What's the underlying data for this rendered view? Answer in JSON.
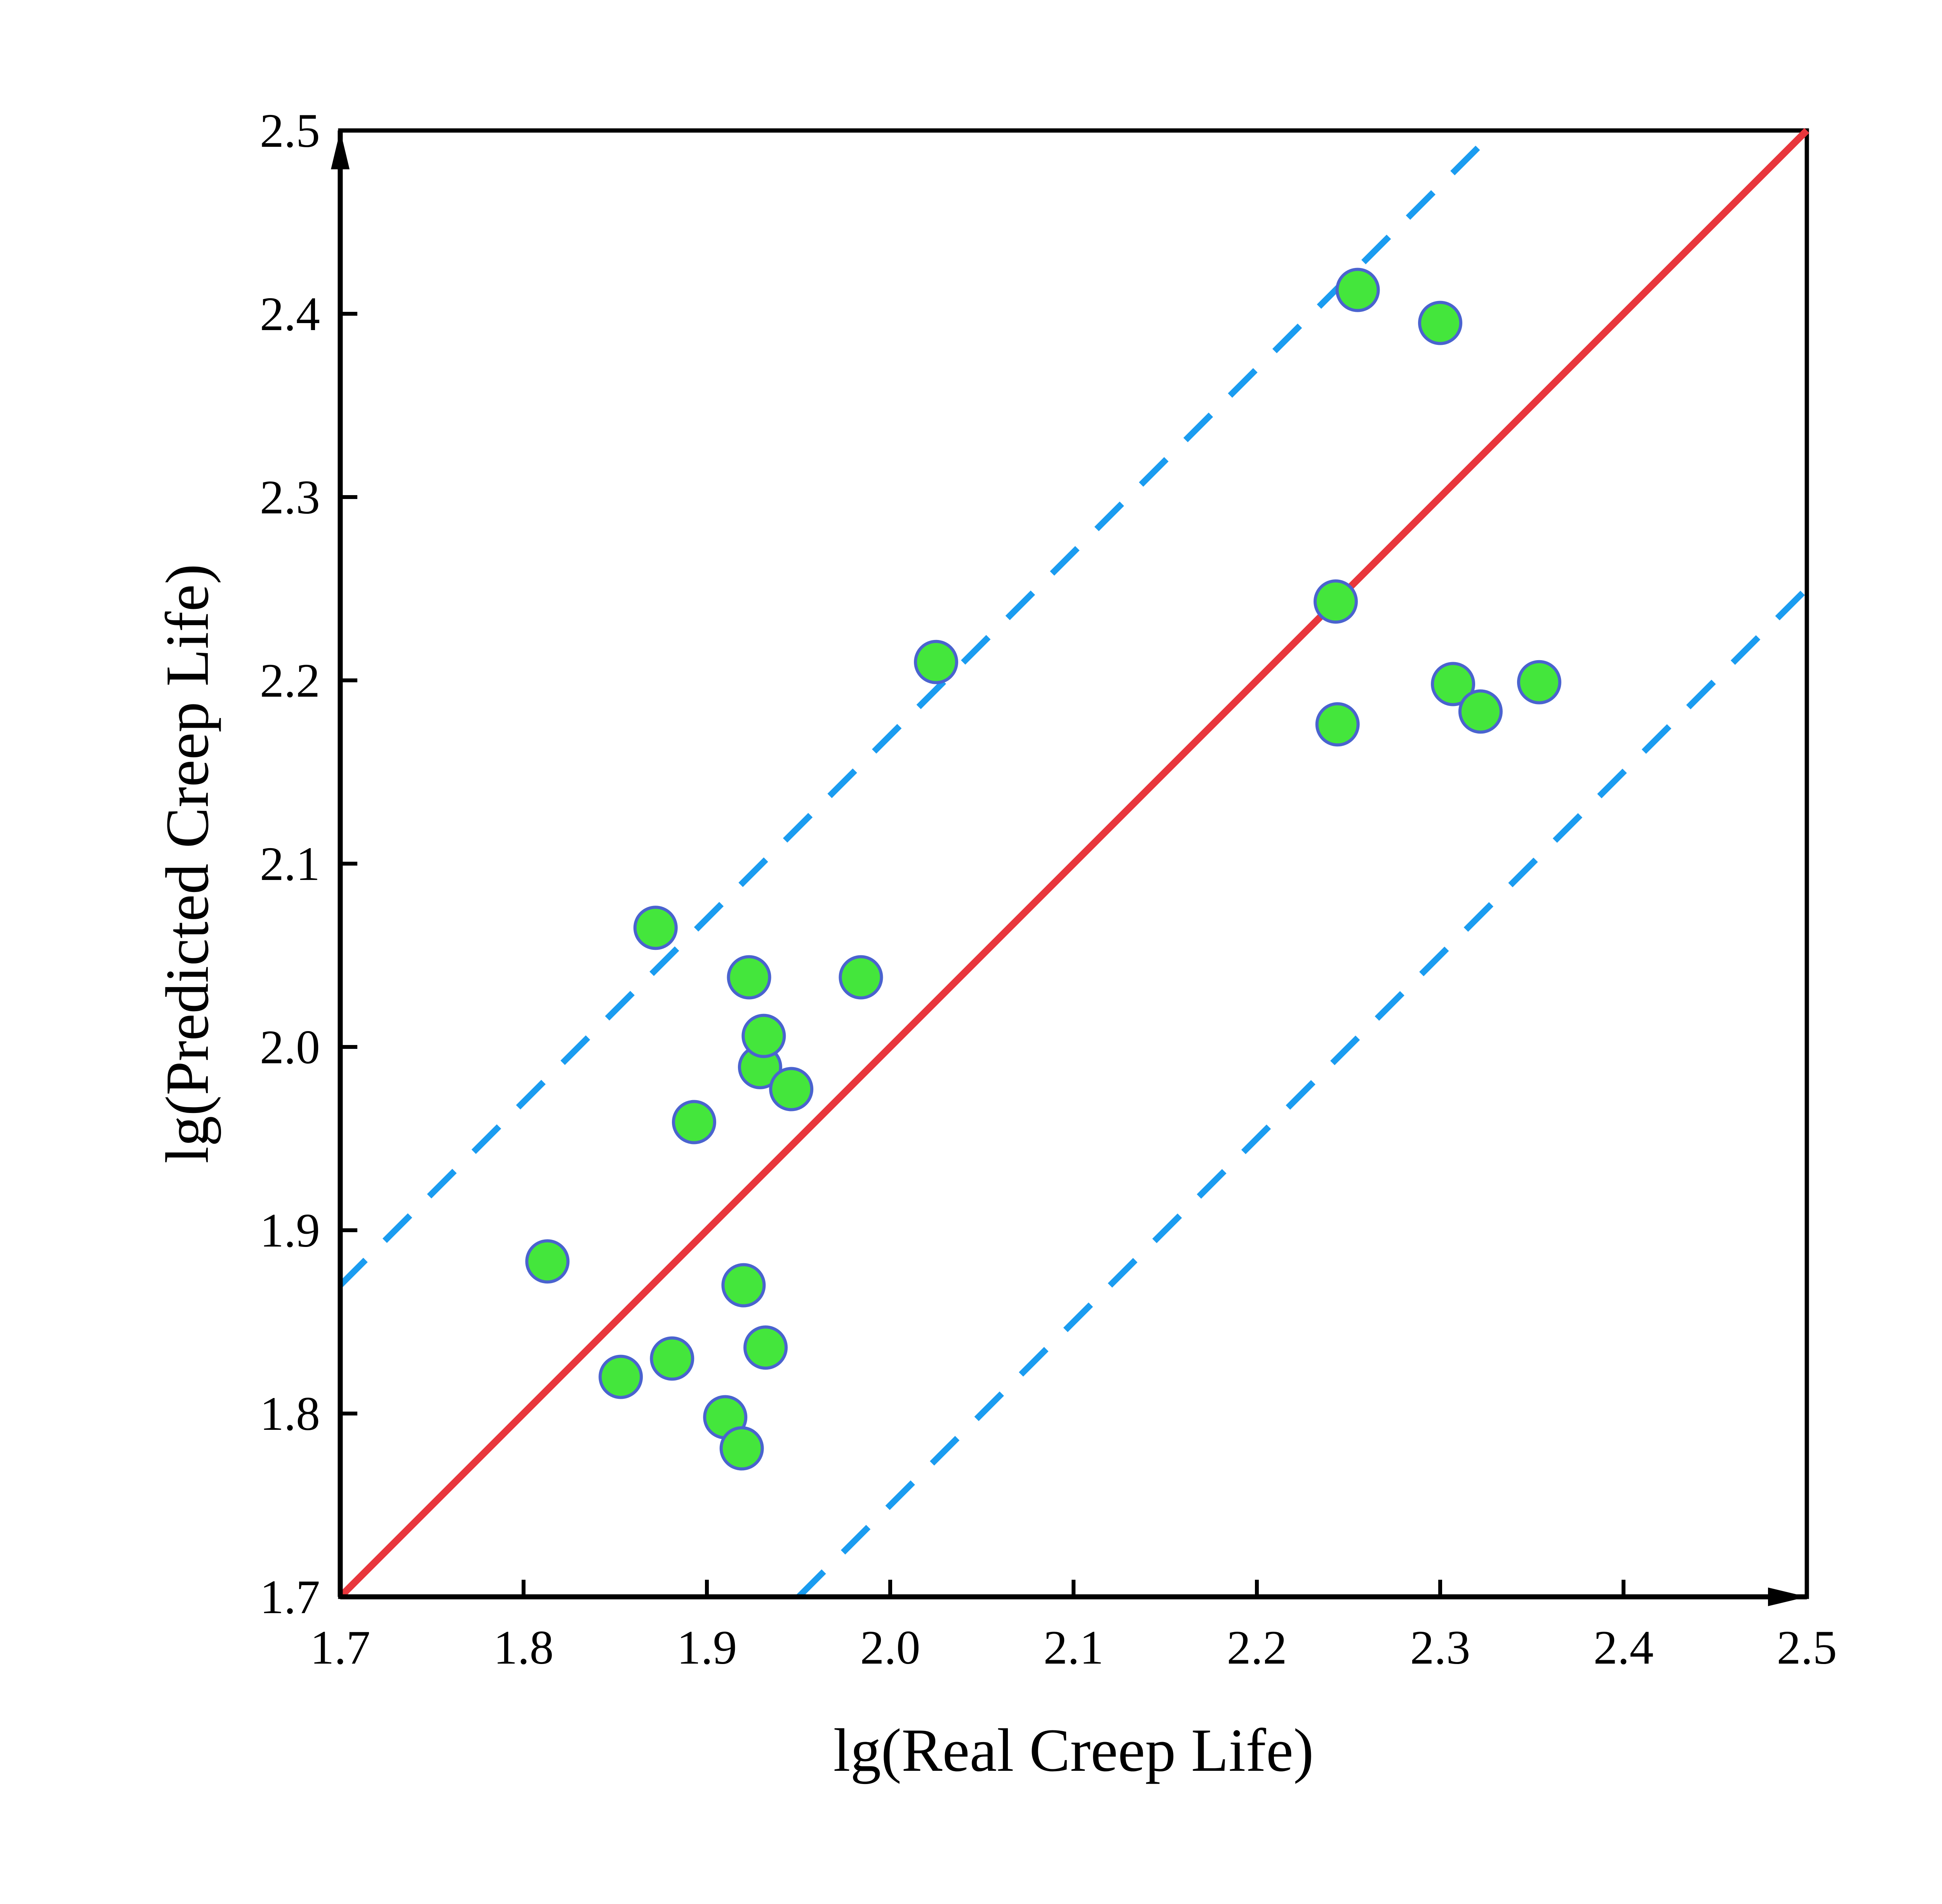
{
  "chart_data": {
    "type": "scatter",
    "title": "",
    "xlabel": "lg(Real Creep Life)",
    "ylabel": "lg(Predicted Creep Life)",
    "xlim": [
      1.7,
      2.5
    ],
    "ylim": [
      1.7,
      2.5
    ],
    "xticks": [
      "1.7",
      "1.8",
      "1.9",
      "2.0",
      "2.1",
      "2.2",
      "2.3",
      "2.4",
      "2.5"
    ],
    "yticks": [
      "1.7",
      "1.8",
      "1.9",
      "2.0",
      "2.1",
      "2.2",
      "2.3",
      "2.4",
      "2.5"
    ],
    "grid": false,
    "legend": "none",
    "points": [
      {
        "x": 1.813,
        "y": 1.883
      },
      {
        "x": 1.853,
        "y": 1.82
      },
      {
        "x": 1.872,
        "y": 2.065
      },
      {
        "x": 1.881,
        "y": 1.83
      },
      {
        "x": 1.893,
        "y": 1.959
      },
      {
        "x": 1.91,
        "y": 1.798
      },
      {
        "x": 1.919,
        "y": 1.781
      },
      {
        "x": 1.92,
        "y": 1.87
      },
      {
        "x": 1.923,
        "y": 2.038
      },
      {
        "x": 1.929,
        "y": 1.989
      },
      {
        "x": 1.931,
        "y": 2.006
      },
      {
        "x": 1.932,
        "y": 1.836
      },
      {
        "x": 1.946,
        "y": 1.977
      },
      {
        "x": 1.984,
        "y": 2.038
      },
      {
        "x": 2.025,
        "y": 2.21
      },
      {
        "x": 2.243,
        "y": 2.243
      },
      {
        "x": 2.244,
        "y": 2.176
      },
      {
        "x": 2.255,
        "y": 2.413
      },
      {
        "x": 2.3,
        "y": 2.395
      },
      {
        "x": 2.307,
        "y": 2.198
      },
      {
        "x": 2.322,
        "y": 2.183
      },
      {
        "x": 2.354,
        "y": 2.199
      }
    ],
    "reference_lines": [
      {
        "kind": "y = x",
        "style": "solid",
        "offset": 0
      },
      {
        "kind": "upper bound",
        "style": "dashed",
        "offset": 0.17
      },
      {
        "kind": "lower bound",
        "style": "dashed",
        "offset": -0.25
      }
    ],
    "colors": {
      "marker_fill": "#44e63c",
      "marker_edge": "#4a63cf",
      "identity_line": "#e8363c",
      "bound_lines": "#1a9cf0",
      "axes": "#000000"
    }
  }
}
